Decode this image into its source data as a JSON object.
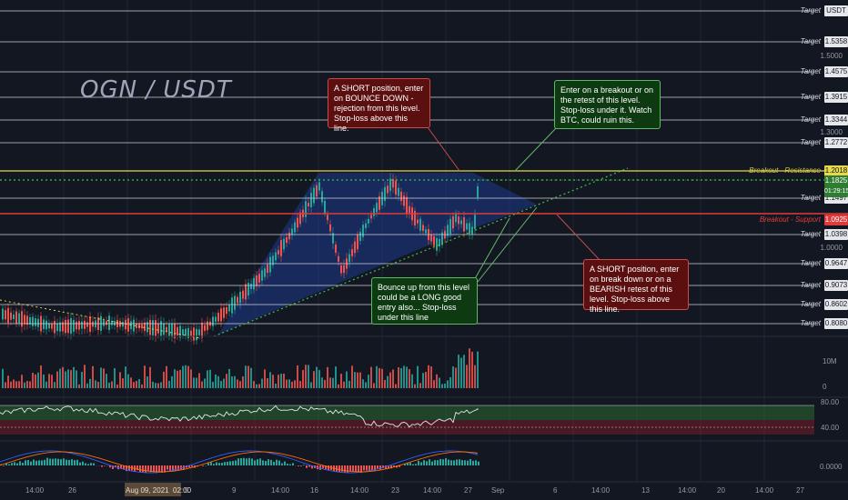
{
  "title": "OGN / USDT",
  "levels": [
    {
      "label": "Target",
      "price": "USDT",
      "y": 12,
      "color": "#cfd2da"
    },
    {
      "label": "Target",
      "price": "1.5358",
      "y": 46,
      "color": "#cfd2da"
    },
    {
      "label": "Target",
      "price": "1.4575",
      "y": 79,
      "color": "#cfd2da"
    },
    {
      "label": "Target",
      "price": "1.3915",
      "y": 107,
      "color": "#cfd2da"
    },
    {
      "label": "Target",
      "price": "1.3344",
      "y": 132,
      "color": "#cfd2da"
    },
    {
      "label": "Target",
      "price": "1.2772",
      "y": 157,
      "color": "#cfd2da"
    },
    {
      "label": "Target",
      "price": "1.1497",
      "y": 218,
      "color": "#cfd2da"
    },
    {
      "label": "Target",
      "price": "1.0398",
      "y": 258,
      "color": "#cfd2da"
    },
    {
      "label": "Target",
      "price": "0.9647",
      "y": 290,
      "color": "#cfd2da"
    },
    {
      "label": "Target",
      "price": "0.9073",
      "y": 314,
      "color": "#cfd2da"
    },
    {
      "label": "Target",
      "price": "0.8602",
      "y": 335,
      "color": "#cfd2da"
    },
    {
      "label": "Target",
      "price": "0.8080",
      "y": 356,
      "color": "#cfd2da"
    }
  ],
  "resistance": {
    "label": "Breakout - Resistance",
    "price": "1.2018",
    "y": 188
  },
  "support": {
    "label": "Breakout - Support",
    "price": "1.0925",
    "y": 235
  },
  "current": {
    "price": "1.1825",
    "countdown": "01:29:15"
  },
  "price_axis": [
    "1.5000",
    "1.3000",
    "1.0000"
  ],
  "volume_axis": [
    "10M",
    "0"
  ],
  "rsi_axis": [
    "80.00",
    "40.00"
  ],
  "macd_axis": [
    "0.0000"
  ],
  "x_axis": [
    "14:00",
    "26",
    "Aug 09, 2021",
    "02:00",
    "5",
    "9",
    "14:00",
    "16",
    "14:00",
    "23",
    "14:00",
    "27",
    "Sep",
    "6",
    "14:00",
    "13",
    "14:00",
    "20",
    "14:00",
    "27"
  ],
  "annotations": {
    "short_top": "A SHORT position, enter on BOUNCE DOWN - rejection from this level. Stop-loss above this line.",
    "breakout": "Enter on a breakout or on the retest of this level. Stop-loss under it. Watch BTC, could ruin this.",
    "bounce": "Bounce up from this level could be a LONG good entry also... Stop-loss under this line",
    "short_bottom": "A SHORT position, enter on break down or on a BEARISH retest of this level. Stop-loss above this line."
  }
}
